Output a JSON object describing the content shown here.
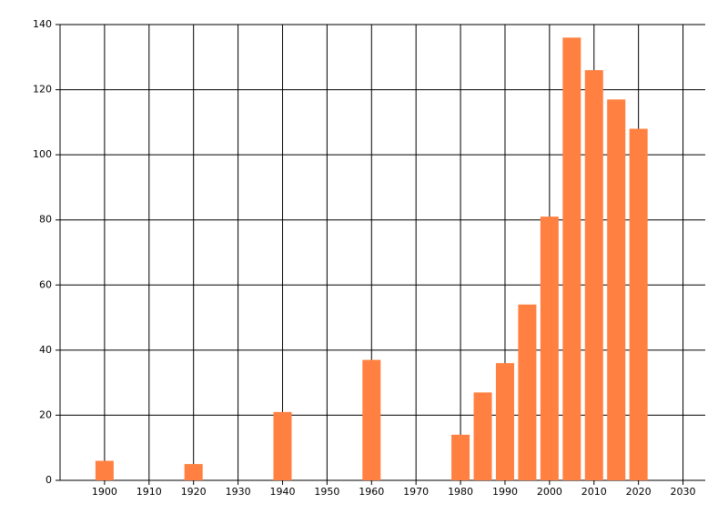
{
  "chart_data": {
    "type": "bar",
    "x": [
      1900,
      1920,
      1940,
      1960,
      1980,
      1985,
      1990,
      1995,
      2000,
      2005,
      2010,
      2015,
      2020
    ],
    "values": [
      6,
      5,
      21,
      37,
      14,
      27,
      36,
      54,
      81,
      136,
      126,
      117,
      108
    ],
    "color": "#ff8040",
    "xlim": [
      1890,
      2035
    ],
    "xticks": [
      1900,
      1910,
      1920,
      1930,
      1940,
      1950,
      1960,
      1970,
      1980,
      1990,
      2000,
      2010,
      2020,
      2030
    ],
    "ylim": [
      0,
      140
    ],
    "yticks": [
      0,
      20,
      40,
      60,
      80,
      100,
      120,
      140
    ],
    "grid": true
  }
}
